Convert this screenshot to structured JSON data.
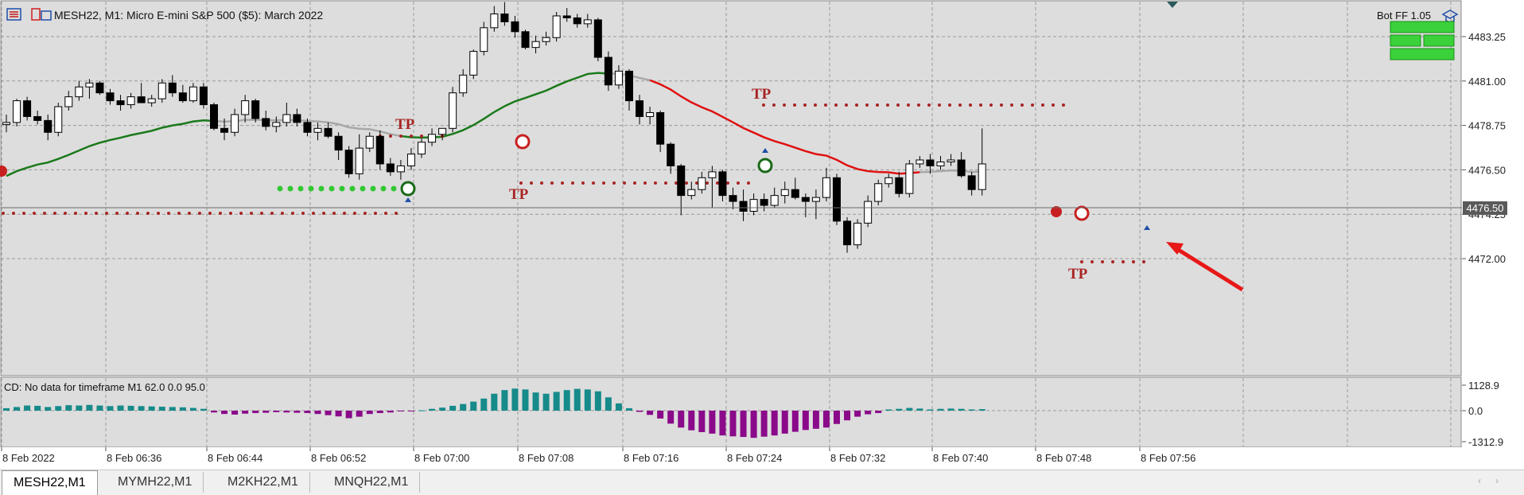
{
  "header": {
    "symbol_text": "MESH22, M1:  Micro E-mini S&P 500 ($5): March 2022",
    "bot_label": "Bot  FF 1.05"
  },
  "badges": [
    "",
    "",
    ""
  ],
  "indicator": {
    "label": "CD: No data for timeframe M1 62.0 0.0 95.0",
    "ticks": [
      "1128.9",
      "0.0",
      "-1312.9"
    ]
  },
  "tabs": [
    {
      "label": "MESH22,M1",
      "active": true
    },
    {
      "label": "MYMH22,M1",
      "active": false
    },
    {
      "label": "M2KH22,M1",
      "active": false
    },
    {
      "label": "MNQH22,M1",
      "active": false
    }
  ],
  "colors": {
    "up_candle": "#ffffff",
    "down_candle": "#000000",
    "ma_green": "#1a7a1a",
    "ma_red": "#e01010",
    "ma_gray": "#a8a8a8",
    "hist_pos": "#178a8a",
    "hist_neg": "#8a0a8a",
    "tp_text": "#a82424",
    "dots_red": "#a82424",
    "dots_green": "#32c832",
    "price_badge": "#5a5a5a"
  },
  "chart_data": {
    "type": "candlestick",
    "y_ticks": [
      4483.25,
      4481.0,
      4478.75,
      4476.5,
      4474.25,
      4472.0
    ],
    "y_tick_labels": [
      "4483.25",
      "4481.00",
      "4478.75",
      "4476.50",
      "4474.25",
      "4472.00"
    ],
    "current_price_label": "4476.50",
    "x_labels": [
      "8 Feb 2022",
      "8 Feb 06:36",
      "8 Feb 06:44",
      "8 Feb 06:52",
      "8 Feb 07:00",
      "8 Feb 07:08",
      "8 Feb 07:16",
      "8 Feb 07:24",
      "8 Feb 07:32",
      "8 Feb 07:40",
      "8 Feb 07:48",
      "8 Feb 07:56"
    ],
    "tp_labels": [
      "TP",
      "TP",
      "TP",
      "TP"
    ],
    "candles": [
      [
        4478.8,
        4479.3,
        4478.4,
        4478.9
      ],
      [
        4478.9,
        4480.1,
        4478.7,
        4480.0
      ],
      [
        4480.0,
        4480.2,
        4479.0,
        4479.2
      ],
      [
        4479.2,
        4479.5,
        4478.8,
        4479.0
      ],
      [
        4479.0,
        4479.3,
        4478.0,
        4478.4
      ],
      [
        4478.4,
        4479.9,
        4478.2,
        4479.7
      ],
      [
        4479.7,
        4480.5,
        4479.5,
        4480.2
      ],
      [
        4480.2,
        4481.0,
        4480.0,
        4480.7
      ],
      [
        4480.7,
        4481.1,
        4480.1,
        4480.9
      ],
      [
        4480.9,
        4481.0,
        4480.3,
        4480.4
      ],
      [
        4480.4,
        4480.6,
        4479.8,
        4480.0
      ],
      [
        4480.0,
        4480.3,
        4479.5,
        4479.8
      ],
      [
        4479.8,
        4480.4,
        4479.6,
        4480.2
      ],
      [
        4480.2,
        4480.9,
        4479.9,
        4479.9
      ],
      [
        4479.9,
        4480.3,
        4479.7,
        4480.1
      ],
      [
        4480.1,
        4481.1,
        4479.9,
        4480.9
      ],
      [
        4480.9,
        4481.3,
        4480.2,
        4480.4
      ],
      [
        4480.4,
        4480.8,
        4479.9,
        4480.0
      ],
      [
        4480.0,
        4480.9,
        4479.9,
        4480.7
      ],
      [
        4480.7,
        4480.9,
        4479.6,
        4479.8
      ],
      [
        4479.8,
        4479.9,
        4478.5,
        4478.6
      ],
      [
        4478.6,
        4479.1,
        4478.0,
        4478.4
      ],
      [
        4478.4,
        4479.6,
        4478.2,
        4479.3
      ],
      [
        4479.3,
        4480.3,
        4478.9,
        4480.0
      ],
      [
        4480.0,
        4480.1,
        4478.9,
        4479.1
      ],
      [
        4479.1,
        4479.5,
        4478.5,
        4478.7
      ],
      [
        4478.7,
        4479.2,
        4478.4,
        4478.9
      ],
      [
        4478.9,
        4479.9,
        4478.7,
        4479.3
      ],
      [
        4479.3,
        4479.6,
        4478.7,
        4478.9
      ],
      [
        4478.9,
        4479.1,
        4478.2,
        4478.4
      ],
      [
        4478.4,
        4478.9,
        4478.0,
        4478.6
      ],
      [
        4478.6,
        4478.9,
        4478.1,
        4478.2
      ],
      [
        4478.2,
        4478.4,
        4477.0,
        4477.5
      ],
      [
        4477.5,
        4477.7,
        4476.1,
        4476.3
      ],
      [
        4476.3,
        4478.3,
        4476.0,
        4477.6
      ],
      [
        4477.6,
        4478.4,
        4477.4,
        4478.2
      ],
      [
        4478.2,
        4478.5,
        4476.5,
        4476.8
      ],
      [
        4476.8,
        4477.1,
        4476.2,
        4476.4
      ],
      [
        4476.4,
        4477.0,
        4476.0,
        4476.7
      ],
      [
        4476.7,
        4477.6,
        4476.5,
        4477.3
      ],
      [
        4477.3,
        4478.1,
        4477.1,
        4477.9
      ],
      [
        4477.9,
        4478.6,
        4477.7,
        4478.3
      ],
      [
        4478.3,
        4478.6,
        4478.0,
        4478.6
      ],
      [
        4478.6,
        4480.7,
        4478.4,
        4480.4
      ],
      [
        4480.4,
        4481.6,
        4480.2,
        4481.3
      ],
      [
        4481.3,
        4482.6,
        4481.1,
        4482.5
      ],
      [
        4482.5,
        4484.0,
        4482.3,
        4483.7
      ],
      [
        4483.7,
        4484.8,
        4483.5,
        4484.4
      ],
      [
        4484.4,
        4485.0,
        4483.8,
        4484.0
      ],
      [
        4484.0,
        4484.3,
        4483.2,
        4483.5
      ],
      [
        4483.5,
        4483.6,
        4482.6,
        4482.7
      ],
      [
        4482.7,
        4483.3,
        4482.4,
        4483.0
      ],
      [
        4483.0,
        4483.5,
        4482.8,
        4483.2
      ],
      [
        4483.2,
        4484.5,
        4483.0,
        4484.3
      ],
      [
        4484.3,
        4484.7,
        4484.0,
        4484.2
      ],
      [
        4484.2,
        4484.4,
        4483.7,
        4483.9
      ],
      [
        4483.9,
        4484.4,
        4483.7,
        4484.1
      ],
      [
        4484.1,
        4484.2,
        4482.0,
        4482.2
      ],
      [
        4482.2,
        4482.5,
        4480.5,
        4480.8
      ],
      [
        4480.8,
        4481.8,
        4480.6,
        4481.5
      ],
      [
        4481.5,
        4481.6,
        4479.5,
        4480.0
      ],
      [
        4480.0,
        4480.3,
        4478.8,
        4479.2
      ],
      [
        4479.2,
        4479.7,
        4478.8,
        4479.4
      ],
      [
        4479.4,
        4479.5,
        4477.4,
        4477.8
      ],
      [
        4477.8,
        4477.9,
        4476.3,
        4476.7
      ],
      [
        4476.7,
        4476.8,
        4474.2,
        4475.2
      ],
      [
        4475.2,
        4475.9,
        4475.0,
        4475.5
      ],
      [
        4475.5,
        4476.4,
        4475.3,
        4476.1
      ],
      [
        4476.1,
        4476.7,
        4474.6,
        4476.4
      ],
      [
        4476.4,
        4476.5,
        4474.9,
        4475.2
      ],
      [
        4475.2,
        4475.6,
        4474.5,
        4474.9
      ],
      [
        4474.9,
        4475.5,
        4473.9,
        4474.4
      ],
      [
        4474.4,
        4475.3,
        4474.2,
        4475.0
      ],
      [
        4475.0,
        4475.3,
        4474.4,
        4474.7
      ],
      [
        4474.7,
        4475.6,
        4474.6,
        4475.2
      ],
      [
        4475.2,
        4475.9,
        4474.8,
        4475.5
      ],
      [
        4475.5,
        4476.1,
        4475.0,
        4475.1
      ],
      [
        4475.1,
        4475.3,
        4474.1,
        4474.9
      ],
      [
        4474.9,
        4475.5,
        4474.0,
        4475.1
      ],
      [
        4475.1,
        4476.6,
        4474.9,
        4476.1
      ],
      [
        4476.1,
        4476.3,
        4473.7,
        4473.9
      ],
      [
        4473.9,
        4474.1,
        4472.3,
        4472.7
      ],
      [
        4472.7,
        4474.0,
        4472.5,
        4473.8
      ],
      [
        4473.8,
        4475.2,
        4473.6,
        4474.9
      ],
      [
        4474.9,
        4476.0,
        4474.7,
        4475.8
      ],
      [
        4475.8,
        4476.3,
        4475.6,
        4476.1
      ],
      [
        4476.1,
        4476.4,
        4475.1,
        4475.3
      ],
      [
        4475.3,
        4477.0,
        4475.1,
        4476.8
      ],
      [
        4476.8,
        4477.2,
        4476.6,
        4477.0
      ],
      [
        4477.0,
        4477.3,
        4476.3,
        4476.7
      ],
      [
        4476.7,
        4477.2,
        4476.5,
        4476.9
      ],
      [
        4476.9,
        4477.3,
        4476.7,
        4477.0
      ],
      [
        4477.0,
        4477.4,
        4476.1,
        4476.2
      ],
      [
        4476.2,
        4476.4,
        4475.2,
        4475.5
      ],
      [
        4475.5,
        4478.6,
        4475.2,
        4476.8
      ]
    ],
    "histogram": [
      80,
      120,
      170,
      160,
      120,
      150,
      180,
      170,
      190,
      170,
      150,
      170,
      160,
      150,
      140,
      130,
      120,
      110,
      90,
      60,
      -60,
      -110,
      -130,
      -100,
      -80,
      -70,
      -50,
      -60,
      -70,
      -80,
      -110,
      -150,
      -190,
      -250,
      -200,
      -110,
      -80,
      -60,
      -20,
      -10,
      10,
      60,
      100,
      160,
      220,
      300,
      400,
      560,
      680,
      730,
      700,
      600,
      560,
      620,
      680,
      720,
      700,
      640,
      440,
      240,
      80,
      -40,
      -140,
      -260,
      -430,
      -560,
      -650,
      -710,
      -760,
      -820,
      -850,
      -870,
      -900,
      -860,
      -820,
      -760,
      -700,
      -640,
      -600,
      -560,
      -440,
      -320,
      -200,
      -120,
      -80,
      40,
      60,
      90,
      70,
      40,
      60,
      70,
      60,
      40,
      50
    ]
  }
}
